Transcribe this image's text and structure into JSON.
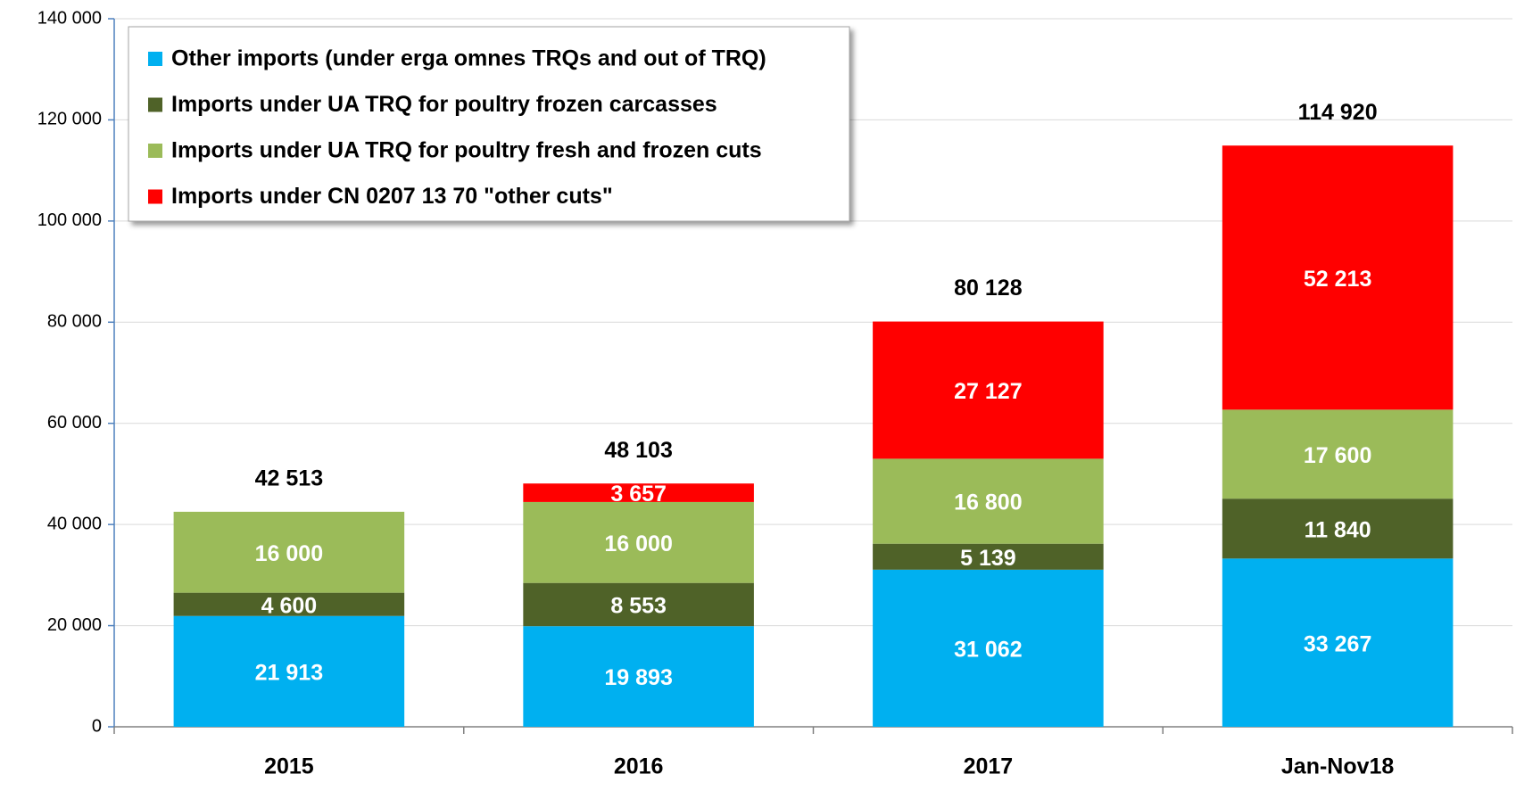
{
  "chart_data": {
    "type": "stacked-bar",
    "categories": [
      "2015",
      "2016",
      "2017",
      "Jan-Nov18"
    ],
    "series": [
      {
        "name": "Other imports (under erga omnes TRQs and out of TRQ)",
        "color": "#00b0f0",
        "values": [
          21913,
          19893,
          31062,
          33267
        ],
        "value_labels": [
          "21 913",
          "19 893",
          "31 062",
          "33 267"
        ]
      },
      {
        "name": "Imports under UA TRQ for poultry frozen carcasses",
        "color": "#4f6228",
        "values": [
          4600,
          8553,
          5139,
          11840
        ],
        "value_labels": [
          "4 600",
          "8 553",
          "5 139",
          "11 840"
        ]
      },
      {
        "name": "Imports under UA TRQ for poultry fresh and frozen cuts",
        "color": "#9bbb59",
        "values": [
          16000,
          16000,
          16800,
          17600
        ],
        "value_labels": [
          "16 000",
          "16 000",
          "16 800",
          "17 600"
        ]
      },
      {
        "name": "Imports under CN 0207 13 70 \"other cuts\"",
        "color": "#ff0000",
        "values": [
          null,
          3657,
          27127,
          52213
        ],
        "value_labels": [
          null,
          "3 657",
          "27 127",
          "52 213"
        ]
      }
    ],
    "totals": [
      42513,
      48103,
      80128,
      114920
    ],
    "totals_labels": [
      "42 513",
      "48 103",
      "80 128",
      "114 920"
    ],
    "ylim": [
      0,
      140000
    ],
    "yticks": [
      0,
      {
        "value": 20000,
        "label": "20 000"
      },
      {
        "value": 40000,
        "label": "40 000"
      },
      {
        "value": 60000,
        "label": "60 000"
      },
      {
        "value": 80000,
        "label": "80 000"
      },
      {
        "value": 100000,
        "label": "100 000"
      },
      {
        "value": 120000,
        "label": "120 000"
      },
      {
        "value": 140000,
        "label": "140 000"
      }
    ],
    "grid": true,
    "legend": "top-left"
  }
}
